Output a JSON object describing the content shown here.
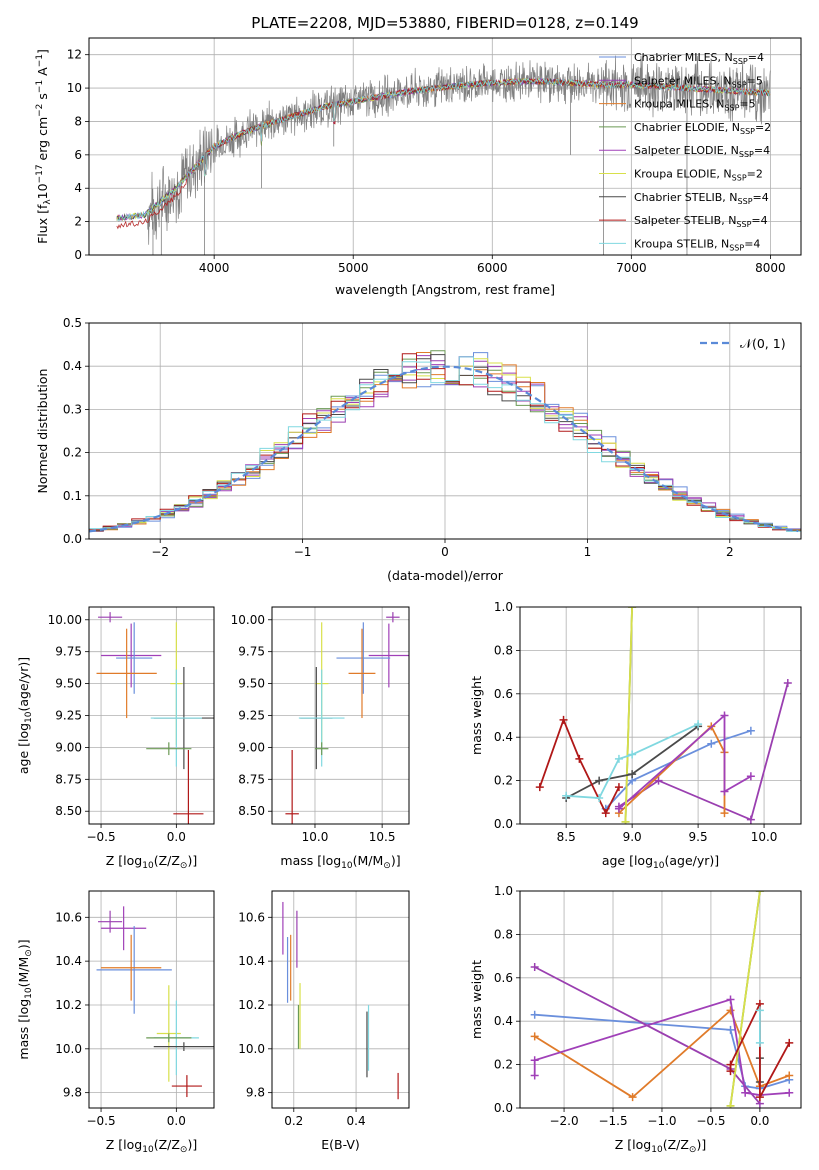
{
  "figure_title": "PLATE=2208, MJD=53880, FIBERID=0128, z=0.149",
  "models": [
    {
      "name": "Chabrier MILES, N",
      "sub": "SSP",
      "n": "=4",
      "color": "#6a8fdc"
    },
    {
      "name": "Salpeter MILES, N",
      "sub": "SSP",
      "n": "=5",
      "color": "#9a3fb0"
    },
    {
      "name": "Kroupa MILES, N",
      "sub": "SSP",
      "n": "=5",
      "color": "#e07b2a"
    },
    {
      "name": "Chabrier ELODIE, N",
      "sub": "SSP",
      "n": "=2",
      "color": "#6b9a55"
    },
    {
      "name": "Salpeter ELODIE, N",
      "sub": "SSP",
      "n": "=4",
      "color": "#a040b8"
    },
    {
      "name": "Kroupa ELODIE, N",
      "sub": "SSP",
      "n": "=2",
      "color": "#d8e04a"
    },
    {
      "name": "Chabrier STELIB, N",
      "sub": "SSP",
      "n": "=4",
      "color": "#4a4a4a"
    },
    {
      "name": "Salpeter STELIB, N",
      "sub": "SSP",
      "n": "=4",
      "color": "#b01818"
    },
    {
      "name": "Kroupa STELIB, N",
      "sub": "SSP",
      "n": "=4",
      "color": "#80d8e0"
    }
  ],
  "chart_data": [
    {
      "id": "spectrum",
      "type": "line",
      "xlabel": "wavelength [Angstrom, rest frame]",
      "ylabel_parts": [
        "Flux [f",
        "λ",
        "10",
        "−17",
        " erg cm",
        "−2",
        " s",
        "−1",
        " A",
        "−1",
        "]"
      ],
      "xlim": [
        3100,
        8220
      ],
      "ylim": [
        0,
        13
      ],
      "xticks": [
        4000,
        5000,
        6000,
        7000,
        8000
      ],
      "yticks": [
        0,
        2,
        4,
        6,
        8,
        10,
        12
      ],
      "data_color": "#808080",
      "continuum": {
        "x": [
          3300,
          3500,
          3700,
          3900,
          4000,
          4200,
          4400,
          4600,
          4800,
          5000,
          5200,
          5400,
          5600,
          5800,
          6000,
          6200,
          6400,
          6600,
          6800,
          7000,
          7200,
          7400,
          7600,
          7800,
          8000
        ],
        "y": [
          2.2,
          2.4,
          3.8,
          5.6,
          6.5,
          7.3,
          7.9,
          8.4,
          8.9,
          9.2,
          9.5,
          9.8,
          10.0,
          10.2,
          10.3,
          10.4,
          10.4,
          10.3,
          10.2,
          10.2,
          10.1,
          10.0,
          9.9,
          9.8,
          9.7
        ]
      },
      "spikes": [
        {
          "x": 3560,
          "y0": 0,
          "y1": 2.0
        },
        {
          "x": 3620,
          "y0": 0,
          "y1": 3.5
        },
        {
          "x": 3930,
          "y0": 0,
          "y1": 5.0
        },
        {
          "x": 4340,
          "y0": 4.0,
          "y1": 8.0
        },
        {
          "x": 4860,
          "y0": 6.5,
          "y1": 9.5
        },
        {
          "x": 6563,
          "y0": 6.0,
          "y1": 11.0
        },
        {
          "x": 6800,
          "y0": 0,
          "y1": 10.0
        },
        {
          "x": 7400,
          "y0": 0,
          "y1": 10.0
        }
      ]
    },
    {
      "id": "residuals",
      "type": "histogram",
      "xlabel": "(data-model)/error",
      "ylabel": "Normed distribution",
      "xlim": [
        -2.5,
        2.5
      ],
      "ylim": [
        0,
        0.5
      ],
      "xticks": [
        -2,
        -1,
        0,
        1,
        2
      ],
      "xtick_labels": [
        "−2",
        "−1",
        "0",
        "1",
        "2"
      ],
      "yticks": [
        0.0,
        0.1,
        0.2,
        0.3,
        0.4,
        0.5
      ],
      "ytick_labels": [
        "0.0",
        "0.1",
        "0.2",
        "0.3",
        "0.4",
        "0.5"
      ],
      "legend": "𝒩(0, 1)",
      "legend_color": "#5a8ad8"
    },
    {
      "id": "age-vs-Z",
      "type": "errorbar",
      "xlabel_parts": [
        "Z [log",
        "10",
        "(Z/Z",
        "⊙",
        ")]"
      ],
      "ylabel_parts": [
        "age  [log",
        "10",
        "(age/yr)]"
      ],
      "xlim": [
        -0.58,
        0.25
      ],
      "ylim": [
        8.4,
        10.1
      ],
      "xticks": [
        -0.5,
        0.0
      ],
      "xtick_labels": [
        "−0.5",
        "0.0"
      ],
      "yticks": [
        8.5,
        8.75,
        9.0,
        9.25,
        9.5,
        9.75,
        10.0
      ],
      "ytick_labels": [
        "8.50",
        "8.75",
        "9.00",
        "9.25",
        "9.50",
        "9.75",
        "10.00"
      ],
      "points": [
        {
          "model": 1,
          "x": -0.44,
          "y": 10.02,
          "ex": 0.08,
          "ey": 0.04
        },
        {
          "model": 4,
          "x": -0.3,
          "y": 9.72,
          "ex": 0.2,
          "ey": 0.25
        },
        {
          "model": 0,
          "x": -0.28,
          "y": 9.7,
          "ex": 0.12,
          "ey": 0.28
        },
        {
          "model": 2,
          "x": -0.33,
          "y": 9.58,
          "ex": 0.2,
          "ey": 0.35
        },
        {
          "model": 5,
          "x": 0.0,
          "y": 9.5,
          "ex": 0.04,
          "ey": 0.48
        },
        {
          "model": 6,
          "x": 0.05,
          "y": 9.23,
          "ex": 0.2,
          "ey": 0.4
        },
        {
          "model": 8,
          "x": 0.0,
          "y": 9.23,
          "ex": 0.17,
          "ey": 0.38
        },
        {
          "model": 3,
          "x": -0.05,
          "y": 8.99,
          "ex": 0.15,
          "ey": 0.05
        },
        {
          "model": 7,
          "x": 0.08,
          "y": 8.48,
          "ex": 0.1,
          "ey": 0.5
        }
      ]
    },
    {
      "id": "age-vs-mass",
      "type": "errorbar",
      "xlabel_parts": [
        "mass [log",
        "10",
        "(M/M",
        "⊙",
        ")]"
      ],
      "xlim": [
        9.68,
        10.7
      ],
      "ylim": [
        8.4,
        10.1
      ],
      "xticks": [
        10.0,
        10.5
      ],
      "xtick_labels": [
        "10.0",
        "10.5"
      ],
      "yticks": [
        8.5,
        8.75,
        9.0,
        9.25,
        9.5,
        9.75,
        10.0
      ],
      "ytick_labels": [
        "8.50",
        "8.75",
        "9.00",
        "9.25",
        "9.50",
        "9.75",
        "10.00"
      ],
      "points": [
        {
          "model": 1,
          "x": 10.58,
          "y": 10.02,
          "ex": 0.05,
          "ey": 0.04
        },
        {
          "model": 4,
          "x": 10.55,
          "y": 9.72,
          "ex": 0.15,
          "ey": 0.25
        },
        {
          "model": 0,
          "x": 10.36,
          "y": 9.7,
          "ex": 0.2,
          "ey": 0.28
        },
        {
          "model": 2,
          "x": 10.35,
          "y": 9.58,
          "ex": 0.1,
          "ey": 0.35
        },
        {
          "model": 5,
          "x": 10.05,
          "y": 9.5,
          "ex": 0.05,
          "ey": 0.48
        },
        {
          "model": 6,
          "x": 10.01,
          "y": 9.23,
          "ex": 0.12,
          "ey": 0.4
        },
        {
          "model": 8,
          "x": 10.05,
          "y": 9.23,
          "ex": 0.17,
          "ey": 0.38
        },
        {
          "model": 3,
          "x": 10.05,
          "y": 8.99,
          "ex": 0.05,
          "ey": 0.05
        },
        {
          "model": 7,
          "x": 9.83,
          "y": 8.48,
          "ex": 0.05,
          "ey": 0.5
        }
      ]
    },
    {
      "id": "mass-weight-vs-age",
      "type": "line",
      "xlabel_parts": [
        "age  [log",
        "10",
        "(age/yr)]"
      ],
      "ylabel": "mass weight",
      "xlim": [
        8.15,
        10.28
      ],
      "ylim": [
        0.0,
        1.0
      ],
      "xticks": [
        8.5,
        9.0,
        9.5,
        10.0
      ],
      "xtick_labels": [
        "8.5",
        "9.0",
        "9.5",
        "10.0"
      ],
      "yticks": [
        0.0,
        0.2,
        0.4,
        0.6,
        0.8,
        1.0
      ],
      "ytick_labels": [
        "0.0",
        "0.2",
        "0.4",
        "0.6",
        "0.8",
        "1.0"
      ],
      "series": [
        {
          "model": 0,
          "x": [
            8.8,
            9.0,
            9.6,
            9.9
          ],
          "y": [
            0.07,
            0.2,
            0.37,
            0.43
          ]
        },
        {
          "model": 1,
          "x": [
            8.9,
            9.2,
            9.9,
            10.18
          ],
          "y": [
            0.08,
            0.2,
            0.02,
            0.65
          ]
        },
        {
          "model": 2,
          "x": [
            8.9,
            9.6,
            9.7,
            9.7
          ],
          "y": [
            0.05,
            0.45,
            0.33,
            0.05
          ]
        },
        {
          "model": 4,
          "x": [
            8.9,
            9.7,
            9.7,
            9.9
          ],
          "y": [
            0.07,
            0.5,
            0.15,
            0.22
          ]
        },
        {
          "model": 3,
          "x": [
            8.95,
            9.0
          ],
          "y": [
            0.01,
            1.0
          ]
        },
        {
          "model": 5,
          "x": [
            8.95,
            9.0
          ],
          "y": [
            0.01,
            1.0
          ]
        },
        {
          "model": 6,
          "x": [
            8.5,
            8.75,
            9.0,
            9.5
          ],
          "y": [
            0.12,
            0.2,
            0.23,
            0.45
          ]
        },
        {
          "model": 7,
          "x": [
            8.3,
            8.48,
            8.6,
            8.8,
            8.9
          ],
          "y": [
            0.17,
            0.48,
            0.3,
            0.05,
            0.17
          ]
        },
        {
          "model": 8,
          "x": [
            8.5,
            8.75,
            8.9,
            9.0,
            9.5
          ],
          "y": [
            0.13,
            0.12,
            0.3,
            0.32,
            0.46
          ]
        }
      ]
    },
    {
      "id": "mass-vs-Z",
      "type": "errorbar",
      "xlabel_parts": [
        "Z [log",
        "10",
        "(Z/Z",
        "⊙",
        ")]"
      ],
      "ylabel_parts": [
        "mass [log",
        "10",
        "(M/M",
        "⊙",
        ")]"
      ],
      "xlim": [
        -0.58,
        0.25
      ],
      "ylim": [
        9.73,
        10.72
      ],
      "xticks": [
        -0.5,
        0.0
      ],
      "xtick_labels": [
        "−0.5",
        "0.0"
      ],
      "yticks": [
        9.8,
        10.0,
        10.2,
        10.4,
        10.6
      ],
      "ytick_labels": [
        "9.8",
        "10.0",
        "10.2",
        "10.4",
        "10.6"
      ],
      "points": [
        {
          "model": 1,
          "x": -0.44,
          "y": 10.58,
          "ex": 0.08,
          "ey": 0.05
        },
        {
          "model": 4,
          "x": -0.35,
          "y": 10.55,
          "ex": 0.15,
          "ey": 0.1
        },
        {
          "model": 0,
          "x": -0.28,
          "y": 10.36,
          "ex": 0.25,
          "ey": 0.2
        },
        {
          "model": 2,
          "x": -0.3,
          "y": 10.37,
          "ex": 0.2,
          "ey": 0.15
        },
        {
          "model": 5,
          "x": -0.05,
          "y": 10.07,
          "ex": 0.08,
          "ey": 0.22
        },
        {
          "model": 8,
          "x": 0.0,
          "y": 10.05,
          "ex": 0.15,
          "ey": 0.17
        },
        {
          "model": 3,
          "x": -0.05,
          "y": 10.05,
          "ex": 0.15,
          "ey": 0.02
        },
        {
          "model": 6,
          "x": 0.05,
          "y": 10.01,
          "ex": 0.2,
          "ey": 0.02
        },
        {
          "model": 7,
          "x": 0.07,
          "y": 9.83,
          "ex": 0.1,
          "ey": 0.05
        }
      ]
    },
    {
      "id": "mass-vs-EBV",
      "type": "errorbar",
      "xlabel": "E(B-V)",
      "xlim": [
        0.13,
        0.57
      ],
      "ylim": [
        9.73,
        10.72
      ],
      "xticks": [
        0.2,
        0.4
      ],
      "xtick_labels": [
        "0.2",
        "0.4"
      ],
      "yticks": [
        9.8,
        10.0,
        10.2,
        10.4,
        10.6
      ],
      "ytick_labels": [
        "9.8",
        "10.0",
        "10.2",
        "10.4",
        "10.6"
      ],
      "points": [
        {
          "model": 4,
          "x": 0.165,
          "y": 10.55,
          "ex": 0,
          "ey": 0.12
        },
        {
          "model": 0,
          "x": 0.18,
          "y": 10.36,
          "ex": 0,
          "ey": 0.15
        },
        {
          "model": 2,
          "x": 0.19,
          "y": 10.37,
          "ex": 0,
          "ey": 0.15
        },
        {
          "model": 1,
          "x": 0.21,
          "y": 10.5,
          "ex": 0,
          "ey": 0.13
        },
        {
          "model": 5,
          "x": 0.22,
          "y": 10.15,
          "ex": 0,
          "ey": 0.15
        },
        {
          "model": 3,
          "x": 0.215,
          "y": 10.1,
          "ex": 0,
          "ey": 0.1
        },
        {
          "model": 8,
          "x": 0.44,
          "y": 10.05,
          "ex": 0,
          "ey": 0.15
        },
        {
          "model": 6,
          "x": 0.435,
          "y": 10.02,
          "ex": 0,
          "ey": 0.15
        },
        {
          "model": 7,
          "x": 0.535,
          "y": 9.83,
          "ex": 0,
          "ey": 0.06
        }
      ]
    },
    {
      "id": "mass-weight-vs-Z",
      "type": "line",
      "xlabel_parts": [
        "Z [log",
        "10",
        "(Z/Z",
        "⊙",
        ")]"
      ],
      "ylabel": "mass weight",
      "xlim": [
        -2.45,
        0.42
      ],
      "ylim": [
        0.0,
        1.0
      ],
      "xticks": [
        -2.0,
        -1.5,
        -1.0,
        -0.5,
        0.0
      ],
      "xtick_labels": [
        "−2.0",
        "−1.5",
        "−1.0",
        "−0.5",
        "0.0"
      ],
      "yticks": [
        0.0,
        0.2,
        0.4,
        0.6,
        0.8,
        1.0
      ],
      "ytick_labels": [
        "0.0",
        "0.2",
        "0.4",
        "0.6",
        "0.8",
        "1.0"
      ],
      "series": [
        {
          "model": 0,
          "x": [
            -2.3,
            -0.3,
            -0.15,
            0.0,
            0.3
          ],
          "y": [
            0.43,
            0.36,
            0.1,
            0.09,
            0.13
          ]
        },
        {
          "model": 1,
          "x": [
            -2.3,
            -0.3,
            0.0
          ],
          "y": [
            0.65,
            0.18,
            0.02
          ]
        },
        {
          "model": 2,
          "x": [
            -2.3,
            -1.3,
            -0.3,
            0.0,
            0.3
          ],
          "y": [
            0.33,
            0.05,
            0.45,
            0.1,
            0.15
          ]
        },
        {
          "model": 4,
          "x": [
            -2.3,
            -2.3,
            -0.3,
            -0.15,
            0.0,
            0.3
          ],
          "y": [
            0.15,
            0.22,
            0.5,
            0.07,
            0.06,
            0.07
          ]
        },
        {
          "model": 3,
          "x": [
            -0.3,
            0.0
          ],
          "y": [
            0.01,
            1.0
          ]
        },
        {
          "model": 5,
          "x": [
            -0.3,
            0.0
          ],
          "y": [
            0.01,
            1.0
          ]
        },
        {
          "model": 6,
          "x": [
            0.0,
            0.0
          ],
          "y": [
            0.12,
            0.23
          ]
        },
        {
          "model": 7,
          "x": [
            -0.3,
            -0.3,
            0.0,
            0.0,
            0.3
          ],
          "y": [
            0.17,
            0.2,
            0.48,
            0.05,
            0.3
          ]
        },
        {
          "model": 8,
          "x": [
            0.0,
            0.0
          ],
          "y": [
            0.45,
            0.3
          ]
        }
      ]
    }
  ]
}
